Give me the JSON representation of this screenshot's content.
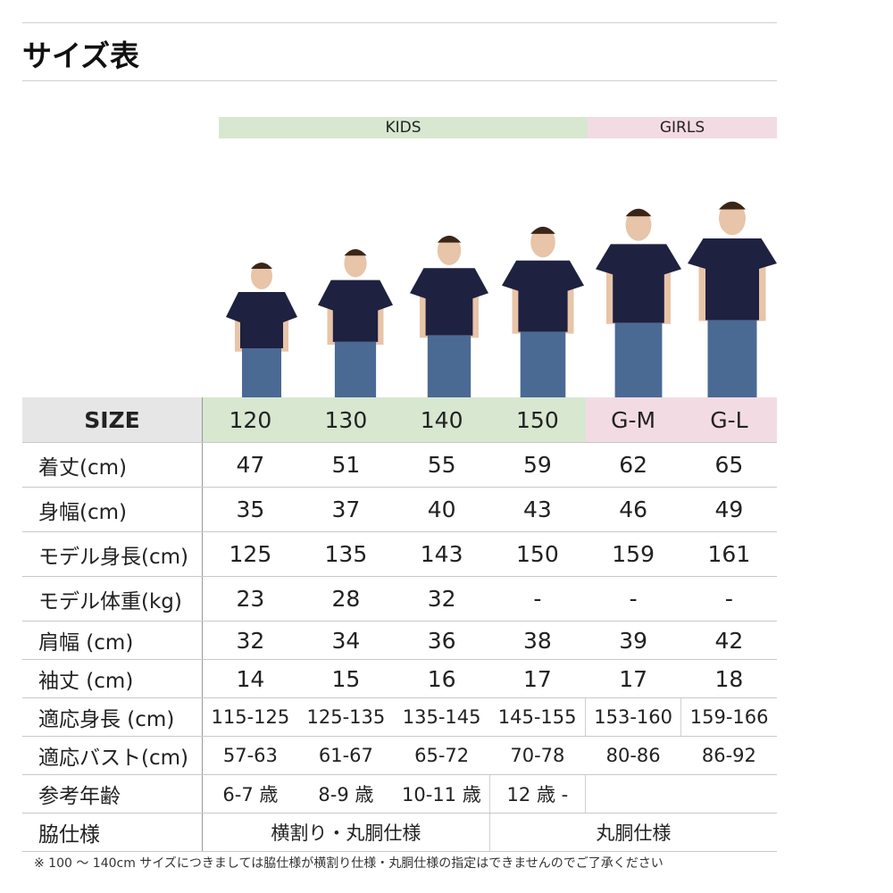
{
  "title": "サイズ表",
  "groups": {
    "kids": "KIDS",
    "girls": "GIRLS"
  },
  "colors": {
    "kids": "#d7e7d0",
    "girls": "#f3dbe3",
    "header": "#e6e6e6",
    "shirt": "#1e2140",
    "jeans": "#4a6a94"
  },
  "table": {
    "size": {
      "label": "SIZE",
      "values": [
        "120",
        "130",
        "140",
        "150",
        "G-M",
        "G-L"
      ]
    },
    "length": {
      "label": "着丈(cm)",
      "values": [
        "47",
        "51",
        "55",
        "59",
        "62",
        "65"
      ]
    },
    "width": {
      "label": "身幅(cm)",
      "values": [
        "35",
        "37",
        "40",
        "43",
        "46",
        "49"
      ]
    },
    "model_height": {
      "label": "モデル身長(cm)",
      "values": [
        "125",
        "135",
        "143",
        "150",
        "159",
        "161"
      ]
    },
    "model_weight": {
      "label": "モデル体重(kg)",
      "values": [
        "23",
        "28",
        "32",
        "-",
        "-",
        "-"
      ]
    },
    "shoulder": {
      "label": "肩幅 (cm)",
      "values": [
        "32",
        "34",
        "36",
        "38",
        "39",
        "42"
      ]
    },
    "sleeve": {
      "label": "袖丈 (cm)",
      "values": [
        "14",
        "15",
        "16",
        "17",
        "17",
        "18"
      ]
    },
    "fit_height": {
      "label": "適応身長 (cm)",
      "values": [
        "115-125",
        "125-135",
        "135-145",
        "145-155",
        "153-160",
        "159-166"
      ]
    },
    "fit_bust": {
      "label": "適応バスト(cm)",
      "values": [
        "57-63",
        "61-67",
        "65-72",
        "70-78",
        "80-86",
        "86-92"
      ]
    },
    "age": {
      "label": "参考年齢",
      "values": [
        "6-7 歳",
        "8-9 歳",
        "10-11 歳",
        "12 歳 -"
      ]
    },
    "side": {
      "label": "脇仕様",
      "values": [
        "横割り・丸胴仕様",
        "丸胴仕様"
      ]
    }
  },
  "note": "※ 100 ～ 140cm サイズにつきましては脇仕様が横割り仕様・丸胴仕様の指定はできませんのでご了承ください"
}
